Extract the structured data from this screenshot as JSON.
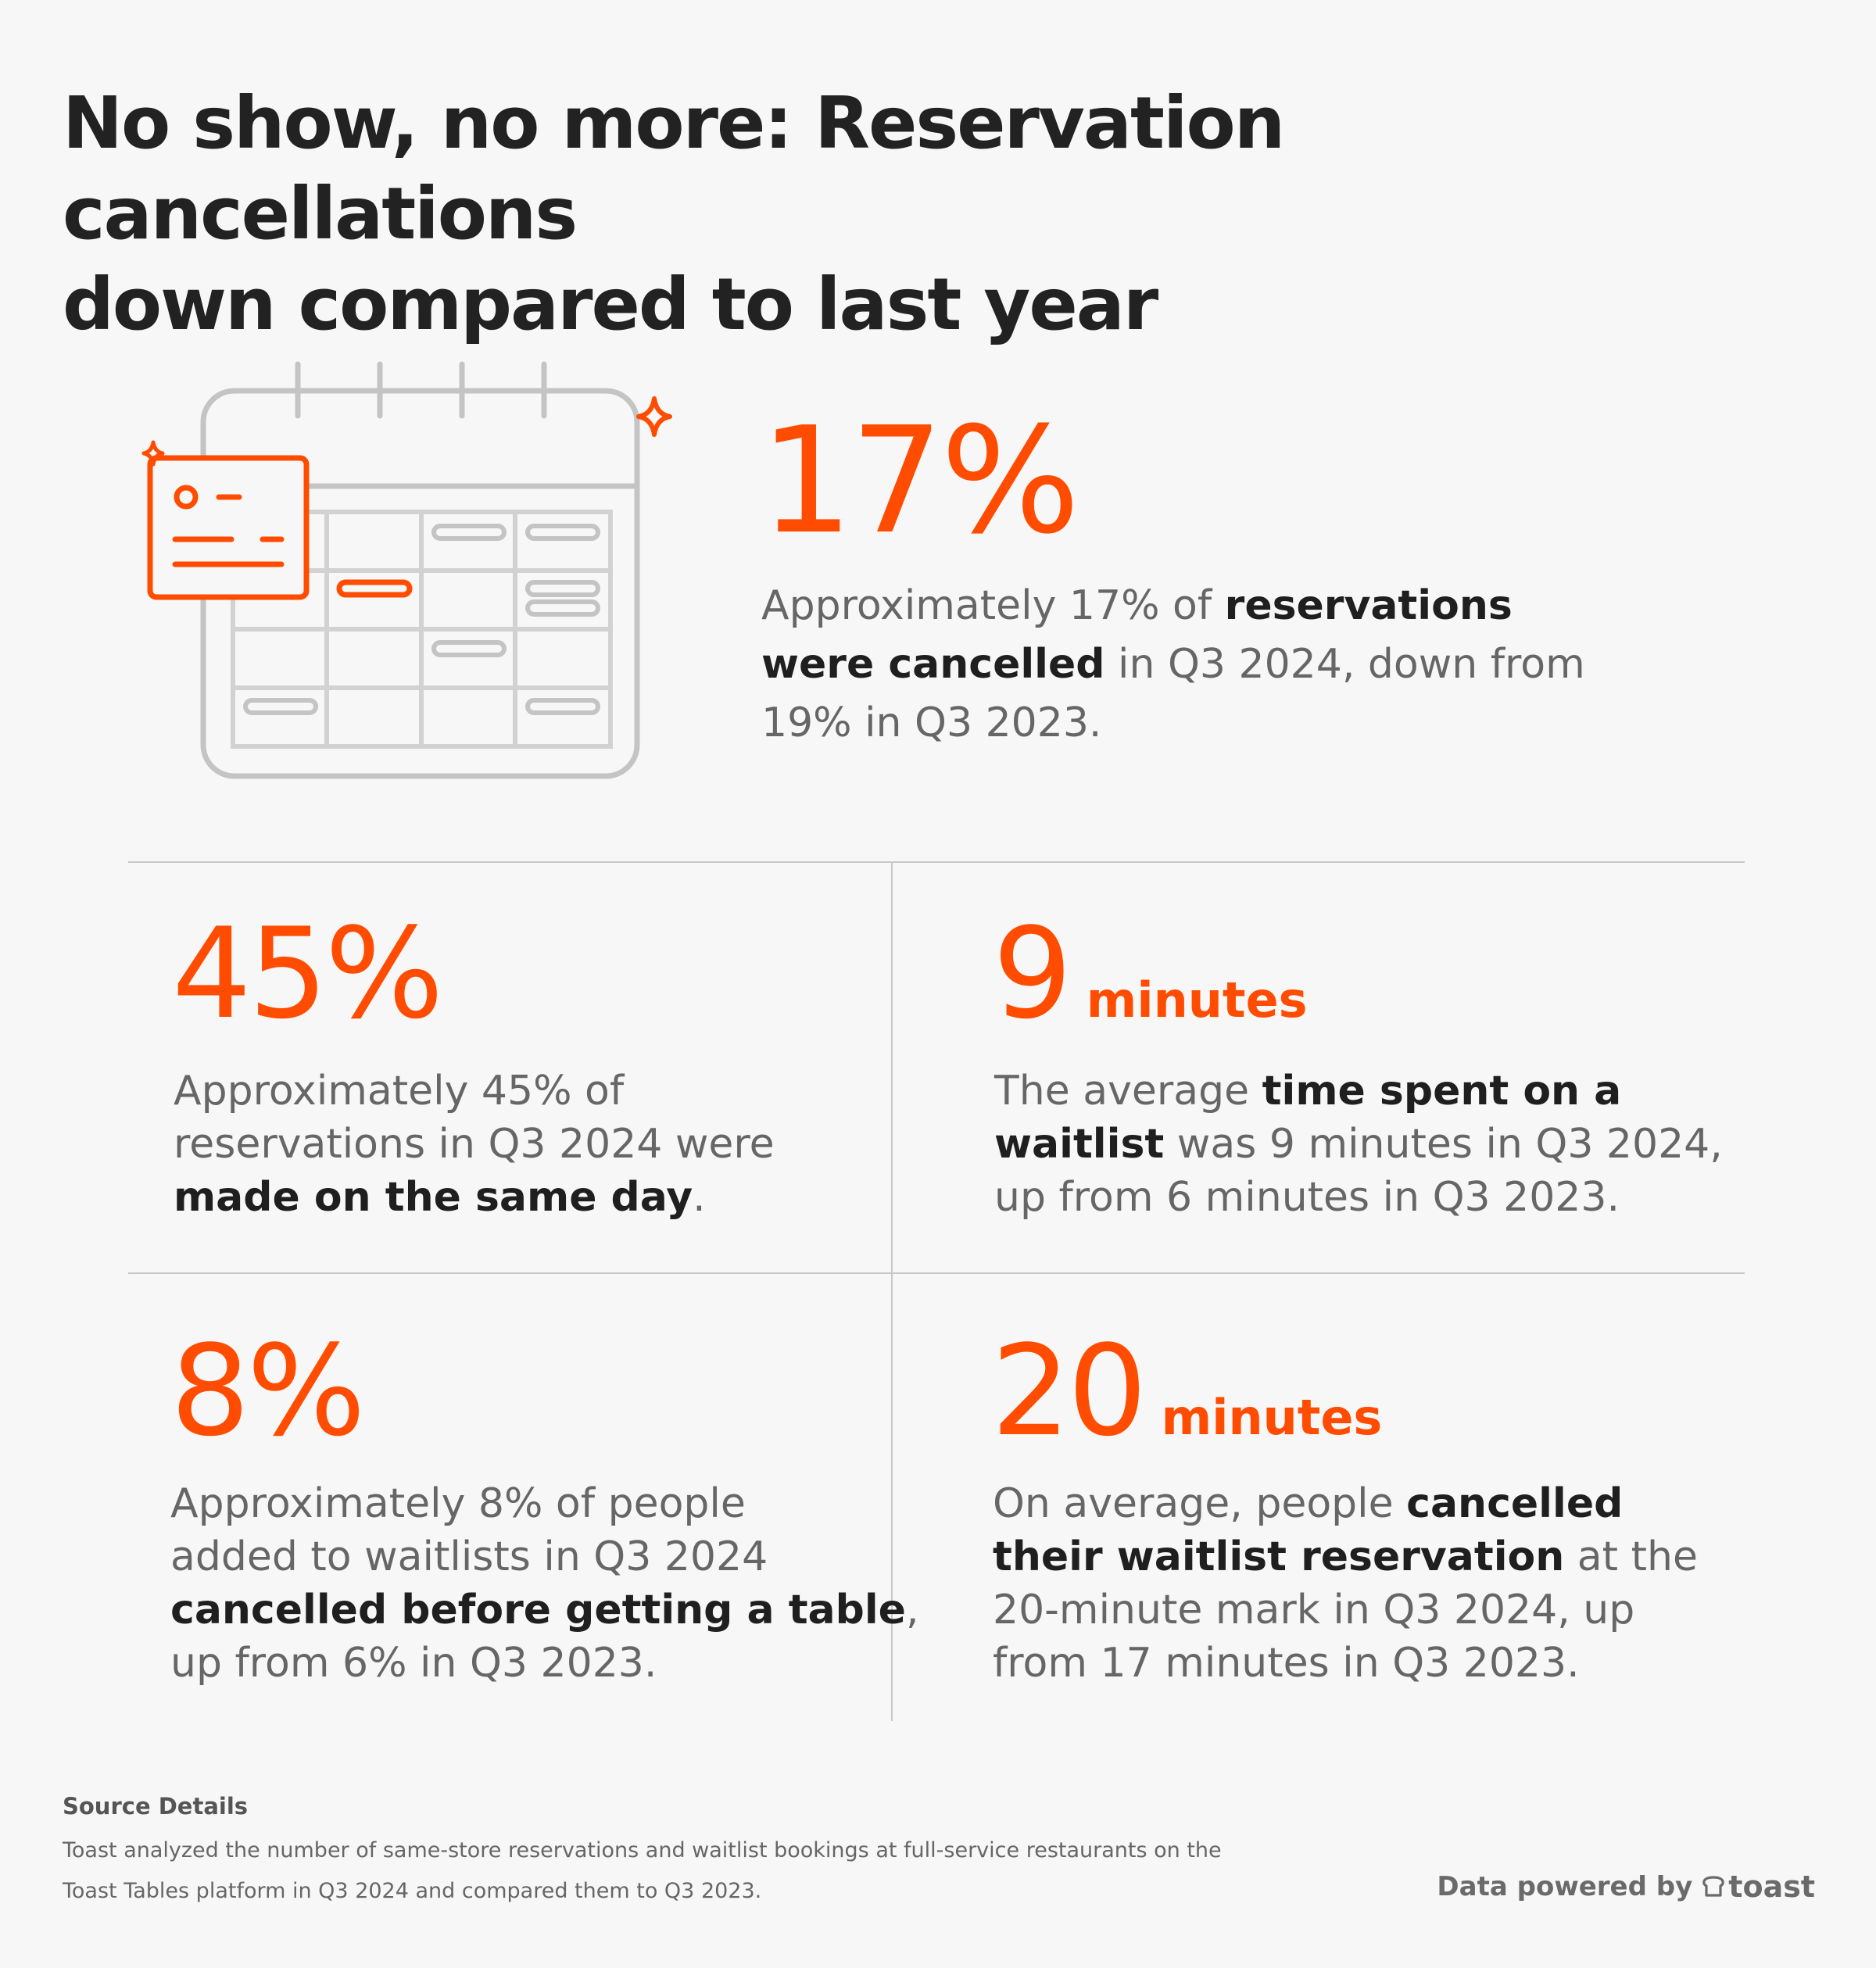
{
  "title": {
    "line1": "No show, no more: Reservation cancellations",
    "line2": "down compared to last year"
  },
  "icons": {
    "calendar": "calendar-icon",
    "sparkle": "sparkle-icon",
    "toast_logo": "toast-logo-icon"
  },
  "colors": {
    "accent": "#ff4c00",
    "text_dark": "#222222",
    "text_muted": "#666666",
    "divider": "#c8c8c8",
    "background": "#f7f7f7",
    "icon_gray": "#c4c4c4"
  },
  "hero": {
    "number": "17%",
    "text": {
      "l1_pre": "Approximately 17% of ",
      "l1_bold": "reservations",
      "l2_bold": "were cancelled",
      "l2_post": " in Q3 2024, down from",
      "l3": "19% in Q3 2023."
    }
  },
  "stats": {
    "same_day": {
      "number": "45%",
      "l1": "Approximately 45% of",
      "l2": "reservations in Q3 2024 were",
      "l3_bold": "made on the same day",
      "l3_post": "."
    },
    "waitlist_time": {
      "number": "9",
      "unit": "minutes",
      "l1_pre": "The average ",
      "l1_bold": "time spent on a",
      "l2_bold": "waitlist",
      "l2_post": " was 9 minutes in Q3 2024,",
      "l3": "up from 6 minutes in Q3 2023."
    },
    "waitlist_cancel": {
      "number": "8%",
      "l1": "Approximately 8% of people",
      "l2": "added to waitlists in Q3 2024",
      "l3_bold": "cancelled before getting a table",
      "l3_post": ",",
      "l4": "up from 6% in Q3 2023."
    },
    "cancel_mark": {
      "number": "20",
      "unit": "minutes",
      "l1_pre": "On average, people ",
      "l1_bold": "cancelled",
      "l2_bold": "their waitlist reservation",
      "l2_post": " at the",
      "l3": "20-minute mark in Q3 2024, up",
      "l4": "from 17 minutes in Q3 2023."
    }
  },
  "source": {
    "heading": "Source Details",
    "l1": "Toast analyzed the number of same-store reservations and waitlist bookings at full-service restaurants on the",
    "l2": "Toast Tables platform in Q3 2024 and compared them to Q3 2023."
  },
  "footer": {
    "powered_by": "Data powered by",
    "brand": "toast"
  }
}
